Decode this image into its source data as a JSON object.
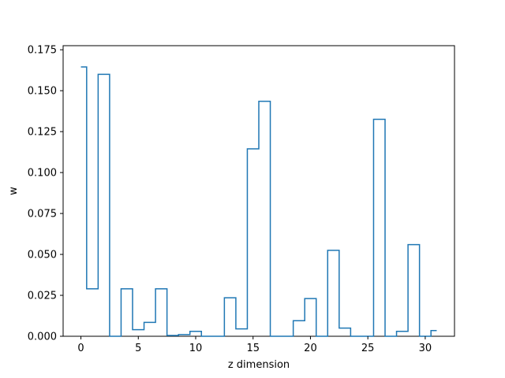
{
  "chart_data": {
    "type": "step",
    "xlabel": "z dimension",
    "ylabel": "w",
    "xlim": [
      -1.55,
      32.55
    ],
    "ylim": [
      0,
      0.1775
    ],
    "xticks": [
      0,
      5,
      10,
      15,
      20,
      25,
      30
    ],
    "xtick_labels": [
      "0",
      "5",
      "10",
      "15",
      "20",
      "25",
      "30"
    ],
    "yticks": [
      0.0,
      0.025,
      0.05,
      0.075,
      0.1,
      0.125,
      0.15,
      0.175
    ],
    "ytick_labels": [
      "0.000",
      "0.025",
      "0.050",
      "0.075",
      "0.100",
      "0.125",
      "0.150",
      "0.175"
    ],
    "grid": false,
    "series": [
      {
        "x": [
          0,
          1,
          2,
          3,
          4,
          5,
          6,
          7,
          8,
          9,
          10,
          11,
          12,
          13,
          14,
          15,
          16,
          17,
          18,
          19,
          20,
          21,
          22,
          23,
          24,
          25,
          26,
          27,
          28,
          29,
          30,
          31
        ],
        "values": [
          0.1645,
          0.029,
          0.16,
          0.0,
          0.029,
          0.004,
          0.0085,
          0.029,
          0.0005,
          0.001,
          0.003,
          0.0,
          0.0,
          0.0235,
          0.0045,
          0.1145,
          0.1435,
          0.0,
          0.0,
          0.0095,
          0.023,
          0.0,
          0.0525,
          0.005,
          0.0,
          0.0,
          0.1325,
          0.0,
          0.003,
          0.056,
          0.0,
          0.0035
        ]
      }
    ],
    "colors": {
      "line": "#1f77b4",
      "axes": "#000000"
    }
  }
}
